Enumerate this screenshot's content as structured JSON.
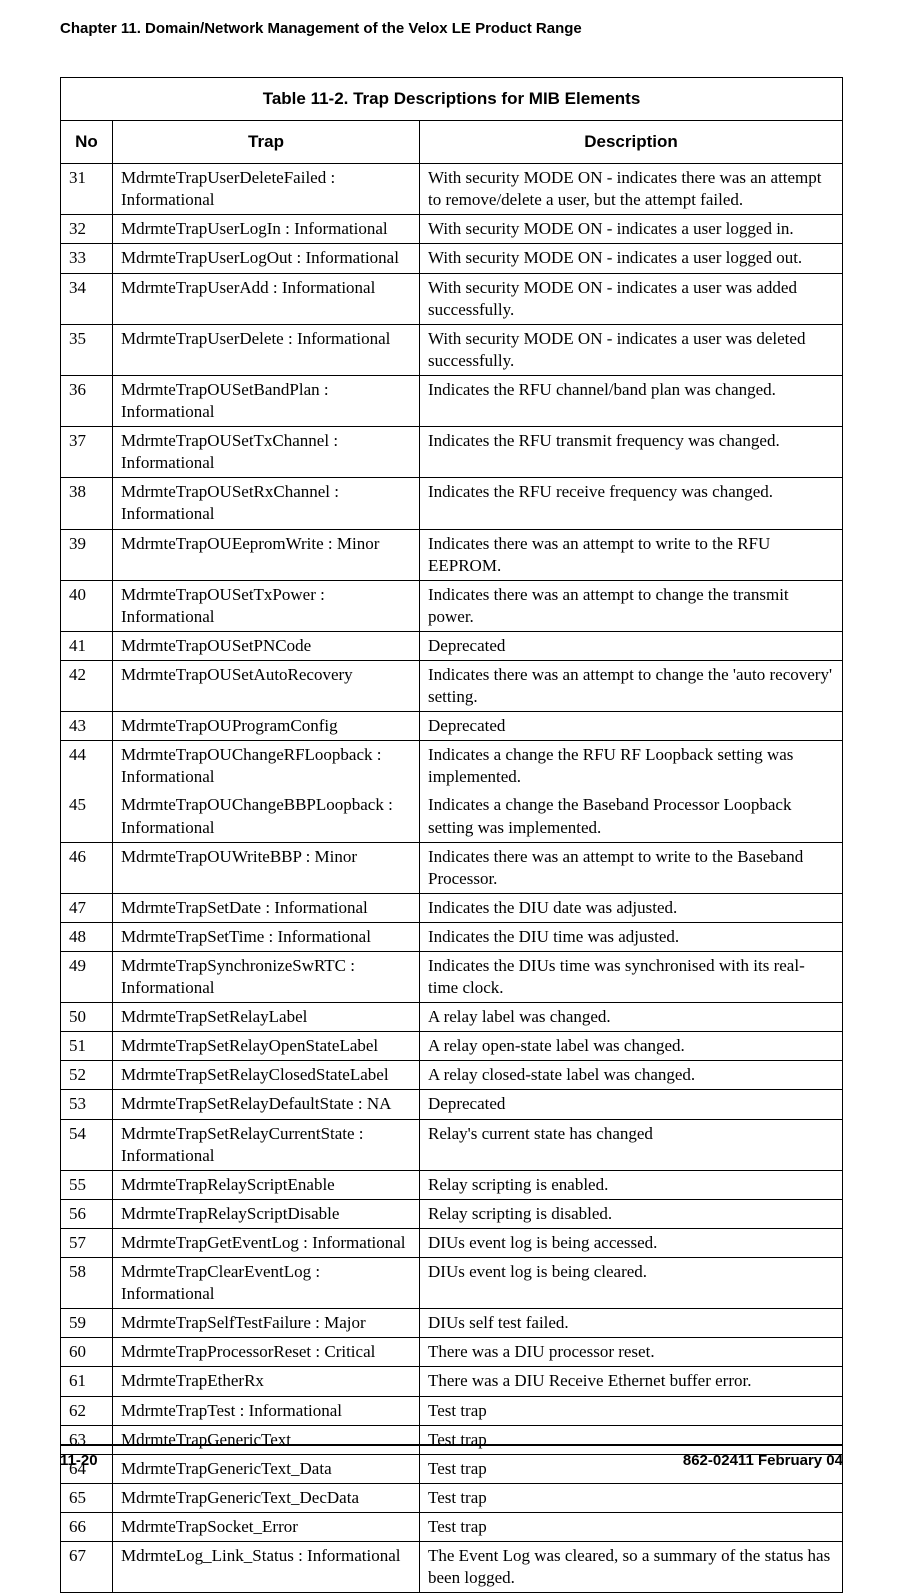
{
  "chapter_title": "Chapter 11. Domain/Network Management of the Velox LE Product Range",
  "table_title": "Table 11-2. Trap Descriptions for MIB Elements",
  "columns": {
    "no": "No",
    "trap": "Trap",
    "desc": "Description"
  },
  "rows": [
    {
      "no": "31",
      "trap": "MdrmteTrapUserDeleteFailed : Informational",
      "desc": "With security MODE ON - indicates there was an attempt to remove/delete a user, but the attempt failed."
    },
    {
      "no": "32",
      "trap": "MdrmteTrapUserLogIn : Informational",
      "desc": "With security MODE ON - indicates a user logged in."
    },
    {
      "no": "33",
      "trap": "MdrmteTrapUserLogOut : Informational",
      "desc": "With security MODE ON - indicates a user logged out."
    },
    {
      "no": "34",
      "trap": "MdrmteTrapUserAdd : Informational",
      "desc": "With security MODE ON - indicates a user was added successfully."
    },
    {
      "no": "35",
      "trap": "MdrmteTrapUserDelete : Informational",
      "desc": "With security MODE ON - indicates a user was deleted successfully."
    },
    {
      "no": "36",
      "trap": "MdrmteTrapOUSetBandPlan : Informational",
      "desc": "Indicates the RFU channel/band plan was changed."
    },
    {
      "no": "37",
      "trap": "MdrmteTrapOUSetTxChannel : Informational",
      "desc": "Indicates the RFU transmit frequency was changed."
    },
    {
      "no": "38",
      "trap": "MdrmteTrapOUSetRxChannel : Informational",
      "desc": "Indicates the RFU receive frequency was changed."
    },
    {
      "no": "39",
      "trap": "MdrmteTrapOUEepromWrite : Minor",
      "desc": "Indicates there was an attempt to write to the RFU EEPROM."
    },
    {
      "no": "40",
      "trap": "MdrmteTrapOUSetTxPower : Informational",
      "desc": "Indicates there was an attempt to change the transmit power."
    },
    {
      "no": "41",
      "trap": "MdrmteTrapOUSetPNCode",
      "desc": "Deprecated"
    },
    {
      "no": "42",
      "trap": "MdrmteTrapOUSetAutoRecovery",
      "desc": "Indicates there was an attempt to change the 'auto recovery' setting."
    },
    {
      "no": "43",
      "trap": "MdrmteTrapOUProgramConfig",
      "desc": "Deprecated"
    },
    {
      "no": "44",
      "trap": "MdrmteTrapOUChangeRFLoopback : Informational",
      "desc": "Indicates a change the RFU RF Loopback setting was implemented."
    },
    {
      "no": "45",
      "trap": "MdrmteTrapOUChangeBBPLoopback : Informational",
      "desc": "Indicates a change the Baseband Processor Loopback setting was implemented."
    },
    {
      "no": "46",
      "trap": "MdrmteTrapOUWriteBBP : Minor",
      "desc": "Indicates there was an attempt to write to the Baseband Processor."
    },
    {
      "no": "47",
      "trap": "MdrmteTrapSetDate : Informational",
      "desc": "Indicates the DIU date was adjusted."
    },
    {
      "no": "48",
      "trap": "MdrmteTrapSetTime : Informational",
      "desc": "Indicates the DIU time was adjusted."
    },
    {
      "no": "49",
      "trap": "MdrmteTrapSynchronizeSwRTC : Informational",
      "desc": "Indicates the DIUs time was synchronised with its real-time clock."
    },
    {
      "no": "50",
      "trap": "MdrmteTrapSetRelayLabel",
      "desc": "A relay label was changed."
    },
    {
      "no": "51",
      "trap": "MdrmteTrapSetRelayOpenStateLabel",
      "desc": "A relay open-state label was changed."
    },
    {
      "no": "52",
      "trap": "MdrmteTrapSetRelayClosedStateLabel",
      "desc": "A relay closed-state label was changed."
    },
    {
      "no": "53",
      "trap": "MdrmteTrapSetRelayDefaultState : NA",
      "desc": "Deprecated"
    },
    {
      "no": "54",
      "trap": "MdrmteTrapSetRelayCurrentState : Informational",
      "desc": "Relay's current state has changed"
    },
    {
      "no": "55",
      "trap": "MdrmteTrapRelayScriptEnable",
      "desc": "Relay scripting is enabled."
    },
    {
      "no": "56",
      "trap": "MdrmteTrapRelayScriptDisable",
      "desc": "Relay scripting is disabled."
    },
    {
      "no": "57",
      "trap": "MdrmteTrapGetEventLog : Informational",
      "desc": "DIUs event log is being accessed."
    },
    {
      "no": "58",
      "trap": "MdrmteTrapClearEventLog : Informational",
      "desc": "DIUs event log is being cleared."
    },
    {
      "no": "59",
      "trap": "MdrmteTrapSelfTestFailure : Major",
      "desc": "DIUs self test failed."
    },
    {
      "no": "60",
      "trap": "MdrmteTrapProcessorReset : Critical",
      "desc": "There was a DIU processor reset."
    },
    {
      "no": "61",
      "trap": "MdrmteTrapEtherRx",
      "desc": "There was a DIU Receive Ethernet buffer error."
    },
    {
      "no": "62",
      "trap": "MdrmteTrapTest : Informational",
      "desc": "Test trap"
    },
    {
      "no": "63",
      "trap": "MdrmteTrapGenericText",
      "desc": "Test trap"
    },
    {
      "no": "64",
      "trap": "MdrmteTrapGenericText_Data",
      "desc": "Test trap"
    },
    {
      "no": "65",
      "trap": "MdrmteTrapGenericText_DecData",
      "desc": "Test trap"
    },
    {
      "no": "66",
      "trap": "MdrmteTrapSocket_Error",
      "desc": "Test trap"
    },
    {
      "no": "67",
      "trap": "MdrmteLog_Link_Status : Informational",
      "desc": "The Event Log was cleared, so a summary of the status has been logged."
    }
  ],
  "merge_44_45": true,
  "footer_left": "11-20",
  "footer_right": "862-02411 February 04"
}
